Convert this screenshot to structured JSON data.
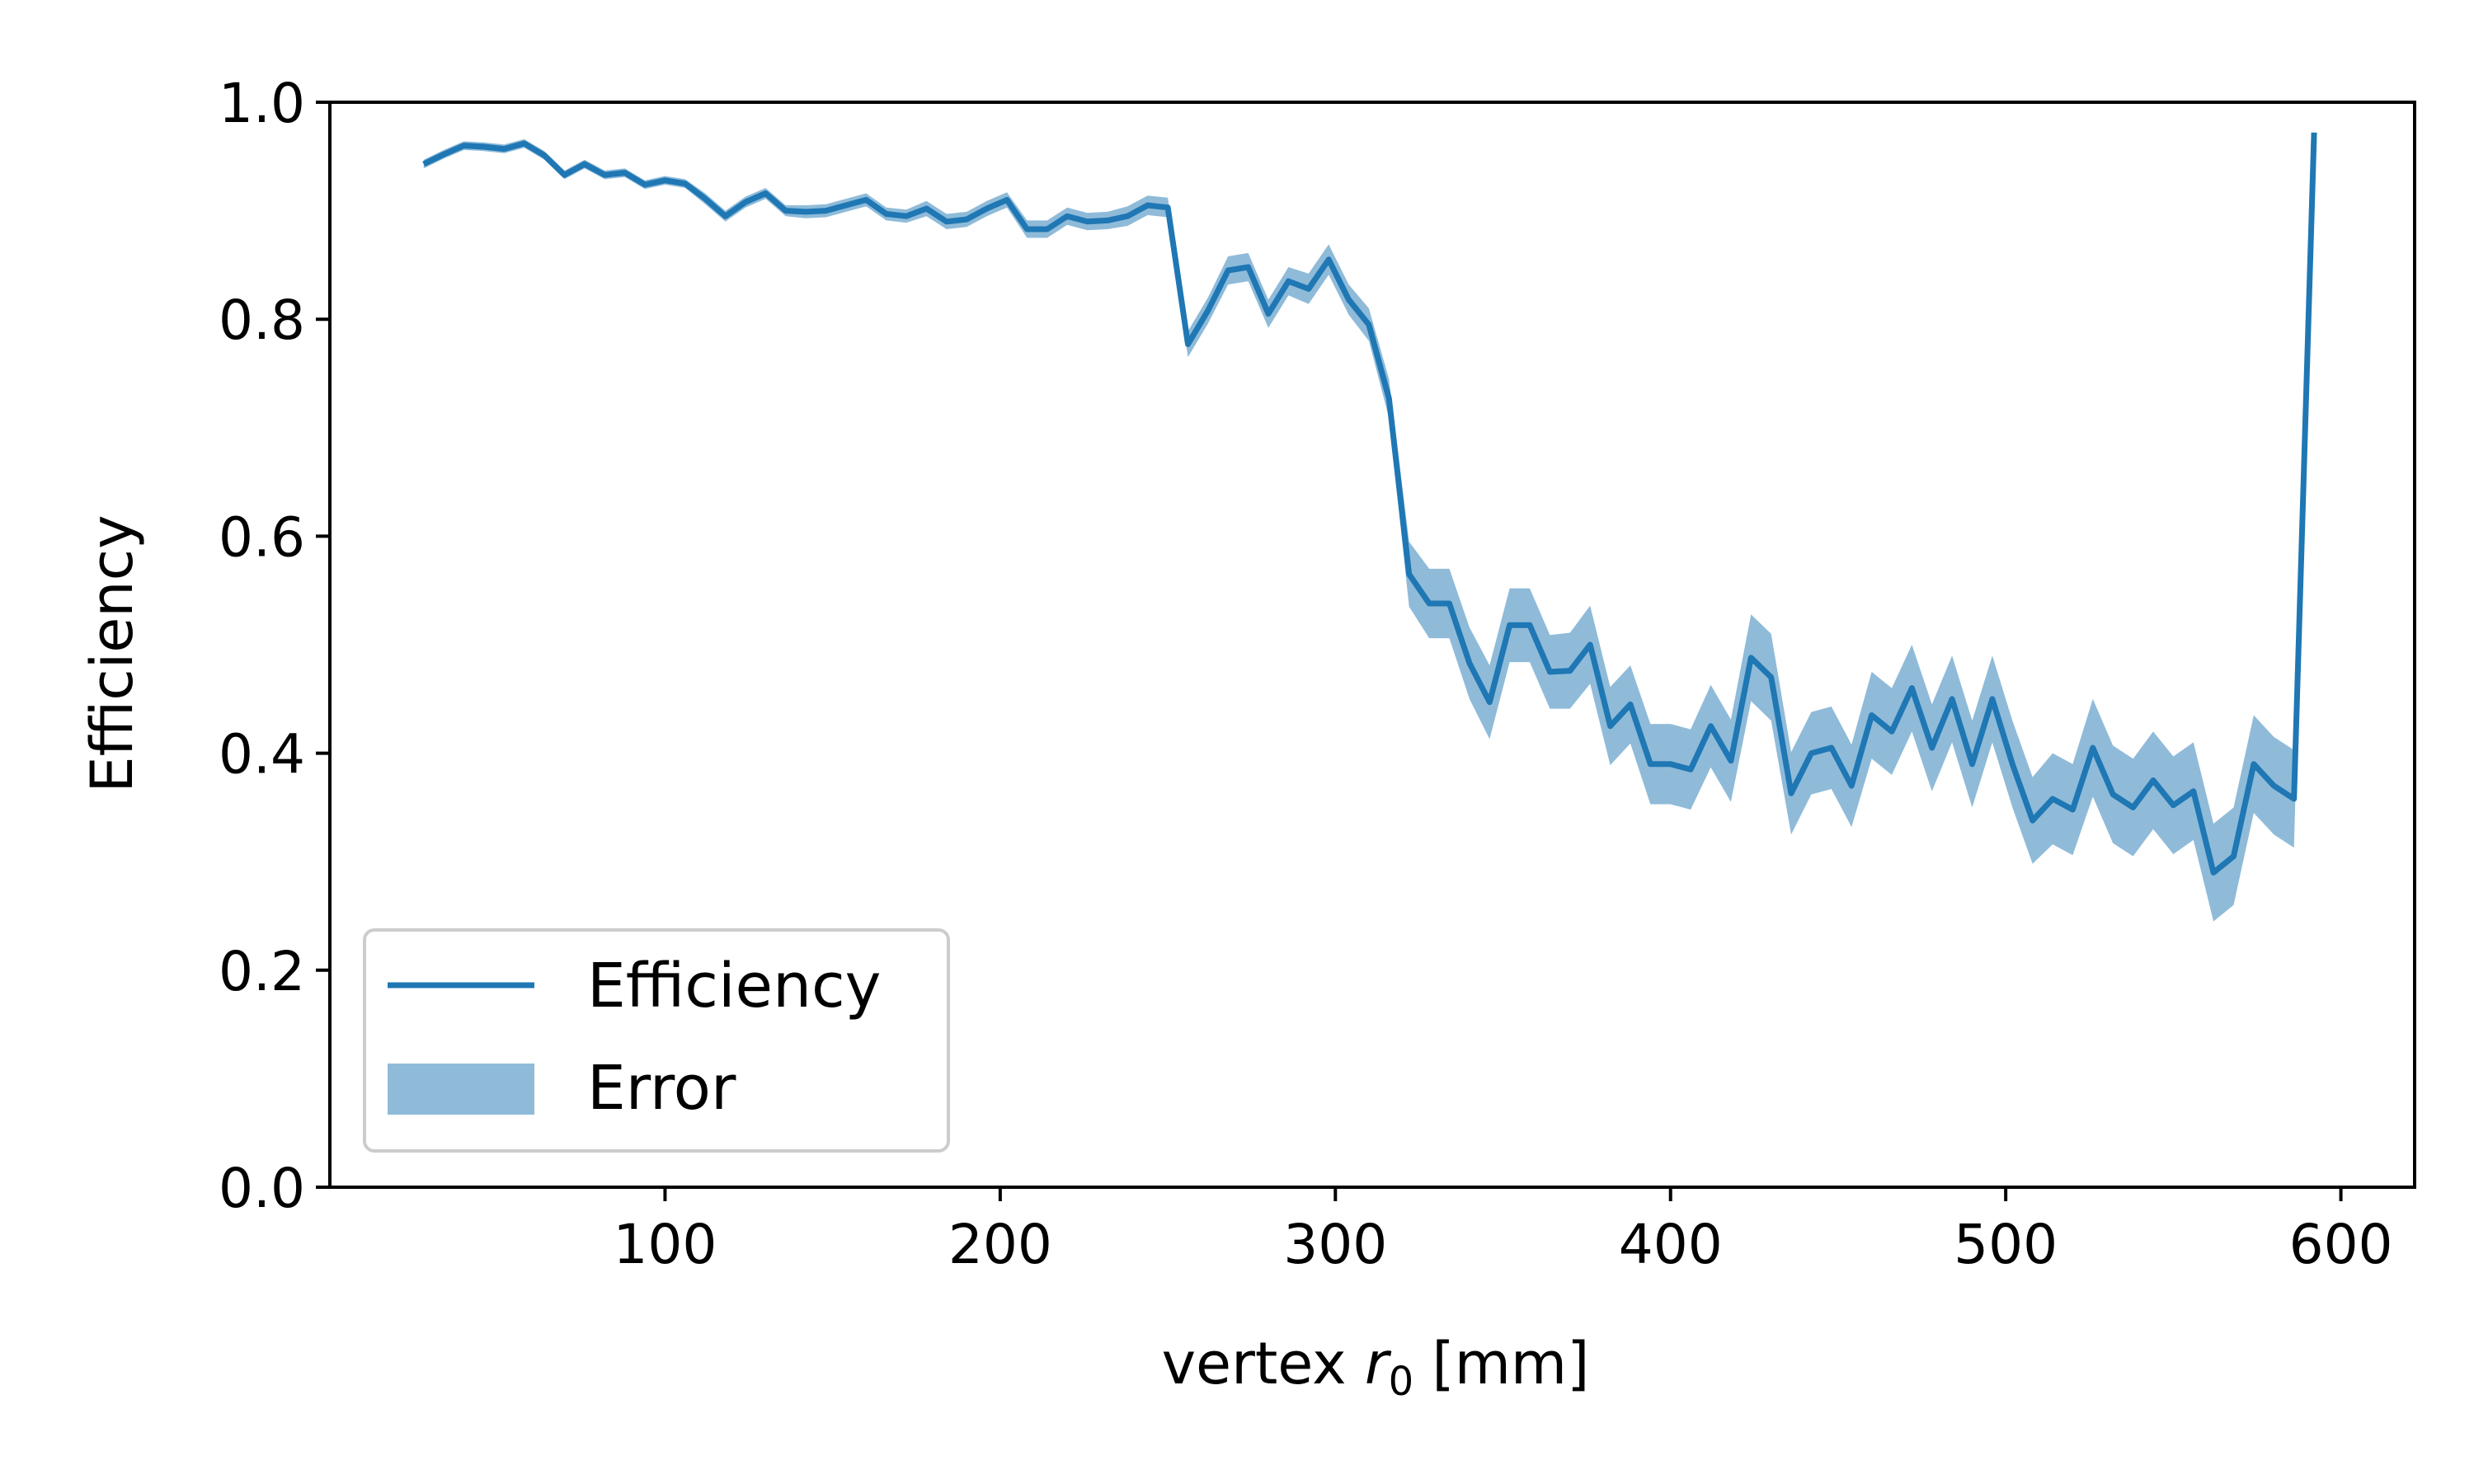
{
  "chart_data": {
    "type": "line",
    "title": "",
    "xlabel_main": "vertex ",
    "xlabel_var": "r",
    "xlabel_sub": "0",
    "xlabel_unit": " [mm]",
    "ylabel": "Efficiency",
    "xlim": [
      0,
      622
    ],
    "ylim": [
      0.0,
      1.0
    ],
    "xticks": [
      100,
      200,
      300,
      400,
      500,
      600
    ],
    "xtick_labels": [
      "100",
      "200",
      "300",
      "400",
      "500",
      "600"
    ],
    "yticks": [
      0.0,
      0.2,
      0.4,
      0.6,
      0.8,
      1.0
    ],
    "ytick_labels": [
      "0.0",
      "0.2",
      "0.4",
      "0.6",
      "0.8",
      "1.0"
    ],
    "grid": false,
    "legend": {
      "position": "lower-left",
      "entries": [
        {
          "name": "Efficiency",
          "kind": "line"
        },
        {
          "name": "Error",
          "kind": "band"
        }
      ]
    },
    "colors": {
      "line": "#1f77b4",
      "band": "#1f77b4",
      "band_alpha": 0.5
    },
    "series": [
      {
        "name": "Efficiency",
        "x": [
          28,
          34,
          40,
          46,
          52,
          58,
          64,
          70,
          76,
          82,
          88,
          94,
          100,
          106,
          112,
          118,
          124,
          130,
          136,
          142,
          148,
          154,
          160,
          166,
          172,
          178,
          184,
          190,
          196,
          202,
          208,
          214,
          220,
          226,
          232,
          238,
          244,
          250,
          256,
          262,
          268,
          274,
          280,
          286,
          292,
          298,
          304,
          310,
          316,
          322,
          328,
          334,
          340,
          346,
          352,
          358,
          364,
          370,
          376,
          382,
          388,
          394,
          400,
          406,
          412,
          418,
          424,
          430,
          436,
          442,
          448,
          454,
          460,
          466,
          472,
          478,
          484,
          490,
          496,
          502,
          508,
          514,
          520,
          526,
          532,
          538,
          544,
          550,
          556,
          562,
          568,
          574,
          580,
          586,
          592
        ],
        "y": [
          0.943,
          0.952,
          0.96,
          0.959,
          0.957,
          0.962,
          0.951,
          0.933,
          0.943,
          0.933,
          0.935,
          0.924,
          0.928,
          0.925,
          0.911,
          0.895,
          0.908,
          0.916,
          0.9,
          0.899,
          0.9,
          0.905,
          0.91,
          0.897,
          0.895,
          0.902,
          0.89,
          0.892,
          0.902,
          0.91,
          0.883,
          0.883,
          0.895,
          0.89,
          0.891,
          0.895,
          0.905,
          0.903,
          0.777,
          0.808,
          0.845,
          0.848,
          0.805,
          0.835,
          0.828,
          0.855,
          0.818,
          0.795,
          0.727,
          0.565,
          0.538,
          0.538,
          0.483,
          0.447,
          0.518,
          0.518,
          0.475,
          0.476,
          0.5,
          0.425,
          0.445,
          0.39,
          0.39,
          0.385,
          0.425,
          0.393,
          0.488,
          0.47,
          0.363,
          0.4,
          0.405,
          0.37,
          0.435,
          0.42,
          0.46,
          0.405,
          0.45,
          0.39,
          0.45,
          0.39,
          0.338,
          0.358,
          0.348,
          0.405,
          0.362,
          0.35,
          0.375,
          0.352,
          0.365,
          0.29,
          0.305,
          0.39,
          0.37,
          0.358,
          0.972
        ],
        "err": [
          0.004,
          0.004,
          0.004,
          0.004,
          0.004,
          0.004,
          0.004,
          0.004,
          0.004,
          0.004,
          0.004,
          0.004,
          0.004,
          0.004,
          0.005,
          0.005,
          0.005,
          0.005,
          0.005,
          0.006,
          0.006,
          0.006,
          0.006,
          0.006,
          0.006,
          0.007,
          0.007,
          0.007,
          0.007,
          0.007,
          0.008,
          0.008,
          0.008,
          0.008,
          0.008,
          0.009,
          0.009,
          0.009,
          0.012,
          0.012,
          0.013,
          0.013,
          0.013,
          0.013,
          0.014,
          0.014,
          0.014,
          0.015,
          0.018,
          0.03,
          0.032,
          0.032,
          0.033,
          0.034,
          0.034,
          0.034,
          0.034,
          0.035,
          0.036,
          0.036,
          0.036,
          0.037,
          0.037,
          0.037,
          0.038,
          0.038,
          0.04,
          0.04,
          0.038,
          0.038,
          0.038,
          0.038,
          0.04,
          0.04,
          0.04,
          0.04,
          0.04,
          0.04,
          0.04,
          0.04,
          0.04,
          0.042,
          0.042,
          0.045,
          0.045,
          0.045,
          0.045,
          0.045,
          0.045,
          0.045,
          0.045,
          0.045,
          0.045,
          0.045,
          0.003
        ]
      }
    ]
  }
}
